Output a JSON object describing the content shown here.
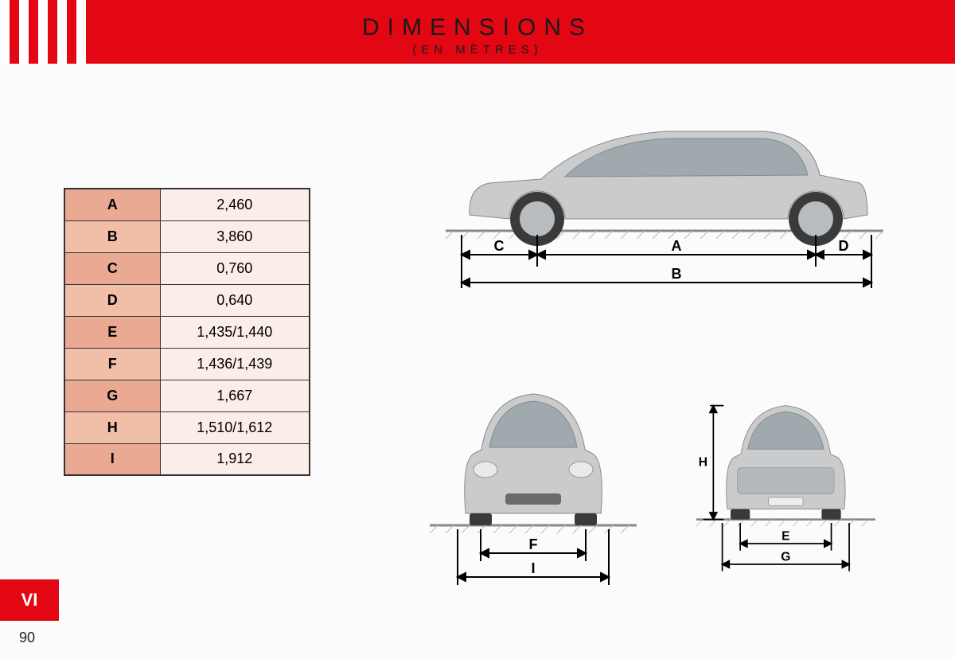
{
  "header": {
    "title": "DIMENSIONS",
    "subtitle": "(EN MÈTRES)",
    "bg_color": "#e30613",
    "stripe_color": "#ffffff"
  },
  "table": {
    "rows": [
      {
        "label": "A",
        "value": "2,460",
        "label_bg": "#e9a993"
      },
      {
        "label": "B",
        "value": "3,860",
        "label_bg": "#f1bfa8"
      },
      {
        "label": "C",
        "value": "0,760",
        "label_bg": "#e9a993"
      },
      {
        "label": "D",
        "value": "0,640",
        "label_bg": "#f1bfa8"
      },
      {
        "label": "E",
        "value": "1,435/1,440",
        "label_bg": "#e9a993"
      },
      {
        "label": "F",
        "value": "1,436/1,439",
        "label_bg": "#f1bfa8"
      },
      {
        "label": "G",
        "value": "1,667",
        "label_bg": "#e9a993"
      },
      {
        "label": "H",
        "value": "1,510/1,612",
        "label_bg": "#f1bfa8"
      },
      {
        "label": "I",
        "value": "1,912",
        "label_bg": "#e9a993"
      }
    ],
    "value_bg": "#fbeee9",
    "border_color": "#333333"
  },
  "diagrams": {
    "side": {
      "labels": {
        "c": "C",
        "a": "A",
        "d": "D",
        "b": "B"
      }
    },
    "front": {
      "labels": {
        "f": "F",
        "i": "I"
      }
    },
    "rear": {
      "labels": {
        "h": "H",
        "e": "E",
        "g": "G"
      }
    },
    "car_body_color": "#c9cbcc",
    "window_color": "#9fa9ae",
    "wheel_color": "#3a3a3a",
    "ground_color": "#888888"
  },
  "footer": {
    "chapter": "VI",
    "page": "90",
    "tab_bg": "#e30613"
  }
}
